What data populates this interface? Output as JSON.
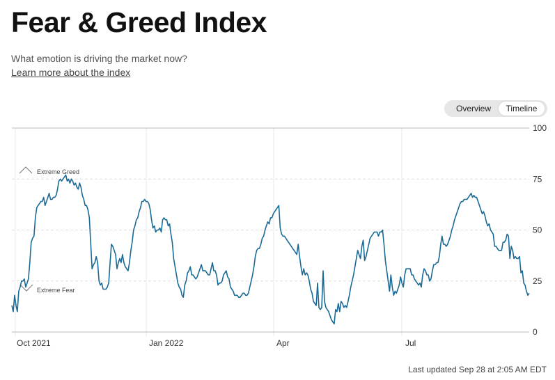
{
  "header": {
    "title": "Fear & Greed Index",
    "subtitle": "What emotion is driving the market now?",
    "learn_link": "Learn more about the index"
  },
  "toggle": {
    "overview": "Overview",
    "timeline": "Timeline",
    "selected": "Timeline"
  },
  "footer": {
    "last_updated": "Last updated Sep 28 at 2:05 AM EDT"
  },
  "chart_data": {
    "type": "line",
    "ylim": [
      0,
      100
    ],
    "y_ticks": [
      "0",
      "25",
      "50",
      "75",
      "100"
    ],
    "x_ticks": [
      "Oct 2021",
      "Jan 2022",
      "Apr",
      "Jul"
    ],
    "annotations": [
      "Extreme Greed",
      "Extreme Fear"
    ],
    "grid": true,
    "line_color": "#1a6a97",
    "series": [
      {
        "values": [
          13,
          10,
          18,
          13,
          10,
          20,
          22,
          25,
          25,
          26,
          22,
          24,
          26,
          34,
          44,
          46,
          47,
          56,
          61,
          62,
          63,
          64,
          64,
          66,
          62,
          64,
          66,
          68,
          65,
          65,
          66,
          66,
          67,
          70,
          74,
          75,
          74,
          75,
          76,
          77,
          74,
          75,
          73,
          75,
          74,
          72,
          73,
          71,
          70,
          73,
          71,
          67,
          65,
          62,
          62,
          60,
          56,
          44,
          31,
          33,
          34,
          37,
          34,
          25,
          23,
          24,
          21,
          21,
          21,
          22,
          24,
          34,
          43,
          42,
          40,
          38,
          31,
          34,
          36,
          34,
          38,
          34,
          32,
          31,
          30,
          34,
          40,
          44,
          50,
          52,
          55,
          56,
          59,
          61,
          64,
          64,
          65,
          64,
          64,
          63,
          60,
          55,
          51,
          52,
          49,
          50,
          50,
          51,
          49,
          55,
          56,
          55,
          55,
          52,
          53,
          48,
          44,
          36,
          32,
          28,
          24,
          22,
          21,
          18,
          17,
          23,
          25,
          29,
          30,
          32,
          28,
          28,
          27,
          26,
          27,
          29,
          31,
          33,
          30,
          30,
          30,
          29,
          28,
          28,
          31,
          34,
          30,
          30,
          28,
          23,
          24,
          24,
          25,
          28,
          29,
          30,
          27,
          26,
          22,
          21,
          20,
          18,
          18,
          18,
          17,
          17,
          18,
          19,
          19,
          18,
          18,
          19,
          22,
          25,
          28,
          32,
          37,
          40,
          41,
          41,
          43,
          46,
          47,
          50,
          52,
          54,
          53,
          56,
          56,
          58,
          59,
          60,
          61,
          62,
          51,
          48,
          47,
          47,
          46,
          45,
          44,
          43,
          42,
          41,
          40,
          39,
          38,
          43,
          37,
          32,
          28,
          31,
          28,
          29,
          28,
          25,
          21,
          19,
          15,
          14,
          13,
          24,
          12,
          11,
          12,
          30,
          15,
          12,
          11,
          10,
          8,
          6,
          5,
          4,
          11,
          10,
          14,
          10,
          15,
          14,
          12,
          13,
          12,
          15,
          18,
          22,
          25,
          28,
          32,
          36,
          40,
          38,
          36,
          42,
          45,
          35,
          37,
          40,
          43,
          46,
          47,
          48,
          49,
          49,
          49,
          47,
          49,
          49,
          50,
          43,
          35,
          30,
          25,
          20,
          28,
          22,
          18,
          20,
          19,
          21,
          23,
          27,
          24,
          22,
          28,
          31,
          31,
          31,
          31,
          28,
          28,
          26,
          25,
          24,
          23,
          24,
          22,
          28,
          31,
          30,
          28,
          28,
          25,
          26,
          30,
          33,
          33,
          34,
          34,
          37,
          43,
          47,
          43,
          43,
          42,
          43,
          45,
          47,
          50,
          52,
          55,
          57,
          59,
          61,
          63,
          64,
          64,
          65,
          65,
          65,
          66,
          67,
          68,
          66,
          67,
          66,
          66,
          64,
          62,
          60,
          58,
          59,
          57,
          54,
          52,
          53,
          50,
          49,
          48,
          42,
          42,
          41,
          40,
          40,
          40,
          44,
          44,
          45,
          48,
          47,
          36,
          42,
          40,
          36,
          37,
          36,
          36,
          37,
          29,
          30,
          24,
          23,
          20,
          18,
          19
        ]
      }
    ]
  }
}
